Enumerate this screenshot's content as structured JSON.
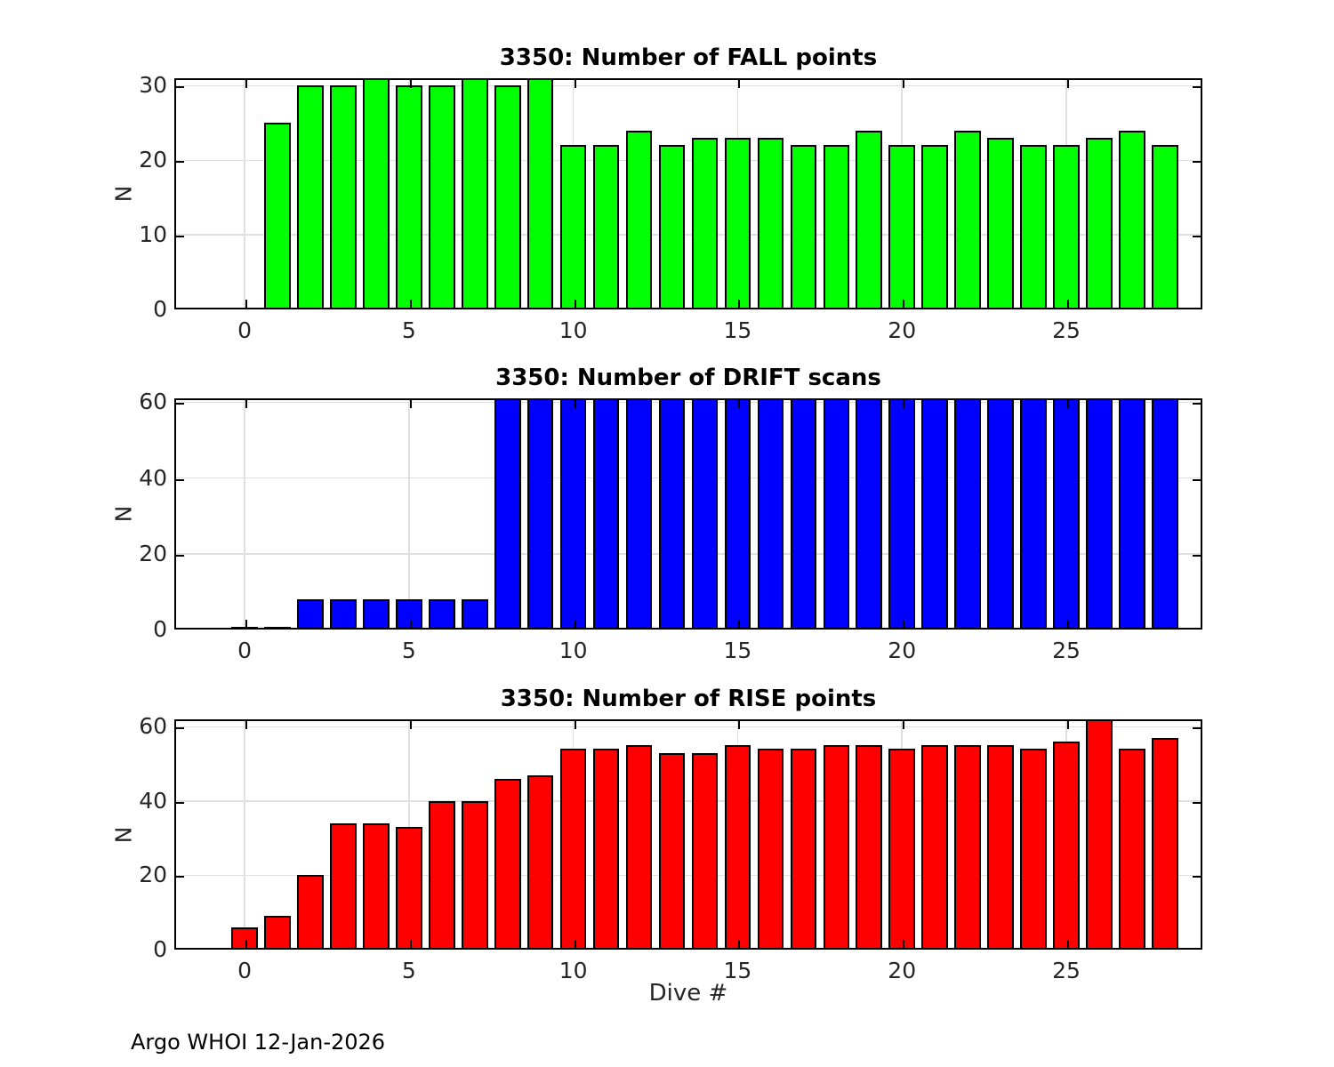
{
  "figure": {
    "xlabel": "Dive #",
    "footer": "Argo WHOI 12-Jan-2026",
    "background_color": "#ffffff",
    "grid_color": "#e0e0e0",
    "axis_color": "#000000",
    "tick_label_color": "#262626"
  },
  "chart_data": [
    {
      "type": "bar",
      "title": "3350: Number of FALL points",
      "xlabel": "",
      "ylabel": "N",
      "bar_color": "#00ff00",
      "bar_edge_color": "#000000",
      "grid": true,
      "legend": "none",
      "xlim": [
        -2.14,
        29.14
      ],
      "ylim": [
        0,
        31
      ],
      "xticks": [
        0,
        5,
        10,
        15,
        20,
        25
      ],
      "yticks": [
        0,
        10,
        20,
        30
      ],
      "x": [
        1,
        2,
        3,
        4,
        5,
        6,
        7,
        8,
        9,
        10,
        11,
        12,
        13,
        14,
        15,
        16,
        17,
        18,
        19,
        20,
        21,
        22,
        23,
        24,
        25,
        26,
        27,
        28
      ],
      "values": [
        25,
        30,
        30,
        31,
        30,
        30,
        31,
        30,
        31,
        22,
        22,
        24,
        22,
        23,
        23,
        23,
        22,
        22,
        24,
        22,
        22,
        24,
        23,
        22,
        22,
        23,
        24,
        22
      ]
    },
    {
      "type": "bar",
      "title": "3350: Number of DRIFT scans",
      "xlabel": "",
      "ylabel": "N",
      "bar_color": "#0000ff",
      "bar_edge_color": "#000000",
      "grid": true,
      "legend": "none",
      "xlim": [
        -2.14,
        29.14
      ],
      "ylim": [
        0,
        61
      ],
      "xticks": [
        0,
        5,
        10,
        15,
        20,
        25
      ],
      "yticks": [
        0,
        20,
        40,
        60
      ],
      "x": [
        0,
        1,
        2,
        3,
        4,
        5,
        6,
        7,
        8,
        9,
        10,
        11,
        12,
        13,
        14,
        15,
        16,
        17,
        18,
        19,
        20,
        21,
        22,
        23,
        24,
        25,
        26,
        27,
        28
      ],
      "values": [
        0,
        0,
        8,
        8,
        8,
        8,
        8,
        8,
        61,
        61,
        61,
        61,
        61,
        61,
        61,
        61,
        61,
        61,
        61,
        61,
        61,
        61,
        61,
        61,
        61,
        61,
        61,
        61,
        61
      ]
    },
    {
      "type": "bar",
      "title": "3350: Number of RISE points",
      "xlabel": "Dive #",
      "ylabel": "N",
      "bar_color": "#ff0000",
      "bar_edge_color": "#000000",
      "grid": true,
      "legend": "none",
      "xlim": [
        -2.14,
        29.14
      ],
      "ylim": [
        0,
        62
      ],
      "xticks": [
        0,
        5,
        10,
        15,
        20,
        25
      ],
      "yticks": [
        0,
        20,
        40,
        60
      ],
      "x": [
        0,
        1,
        2,
        3,
        4,
        5,
        6,
        7,
        8,
        9,
        10,
        11,
        12,
        13,
        14,
        15,
        16,
        17,
        18,
        19,
        20,
        21,
        22,
        23,
        24,
        25,
        26,
        27,
        28
      ],
      "values": [
        6,
        9,
        20,
        34,
        34,
        33,
        40,
        40,
        46,
        47,
        54,
        54,
        55,
        53,
        53,
        55,
        54,
        54,
        55,
        55,
        54,
        55,
        55,
        55,
        54,
        56,
        62,
        54,
        57
      ]
    }
  ]
}
